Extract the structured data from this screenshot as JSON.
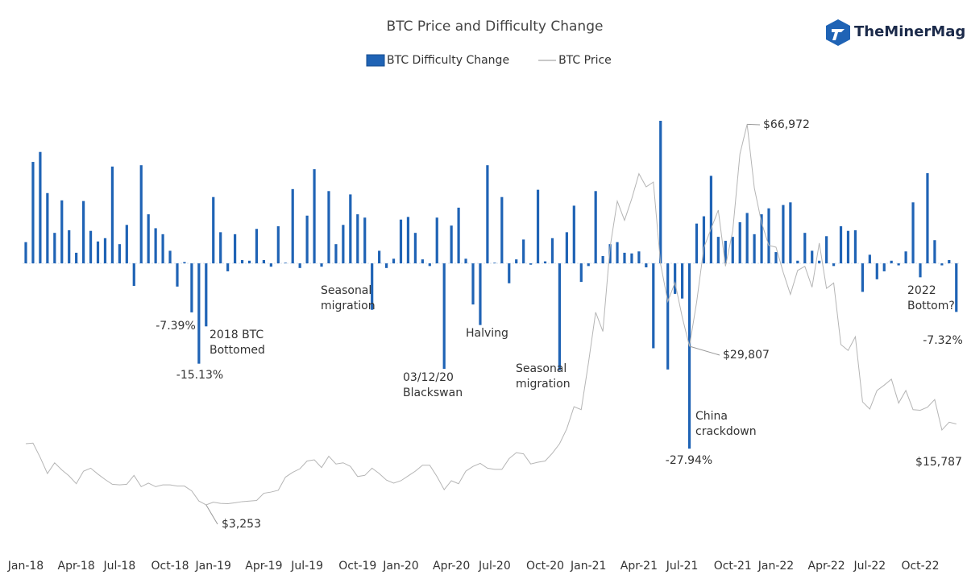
{
  "brand": "TheMinerMag",
  "chart_data": {
    "type": "bar",
    "title": "BTC Price and Difficulty Change",
    "categories": [
      "Jan-18",
      null,
      null,
      null,
      null,
      null,
      null,
      "Apr-18",
      null,
      null,
      null,
      null,
      null,
      "Jul-18",
      null,
      null,
      null,
      null,
      null,
      null,
      "Oct-18",
      null,
      null,
      null,
      null,
      null,
      "Jan-19",
      null,
      null,
      null,
      null,
      null,
      null,
      "Apr-19",
      null,
      null,
      null,
      null,
      null,
      "Jul-19",
      null,
      null,
      null,
      null,
      null,
      null,
      "Oct-19",
      null,
      null,
      null,
      null,
      null,
      "Jan-20",
      null,
      null,
      null,
      null,
      null,
      null,
      "Apr-20",
      null,
      null,
      null,
      null,
      null,
      "Jul-20",
      null,
      null,
      null,
      null,
      null,
      null,
      "Oct-20",
      null,
      null,
      null,
      null,
      null,
      "Jan-21",
      null,
      null,
      null,
      null,
      null,
      null,
      "Apr-21",
      null,
      null,
      null,
      null,
      null,
      "Jul-21",
      null,
      null,
      null,
      null,
      null,
      null,
      "Oct-21",
      null,
      null,
      null,
      null,
      null,
      "Jan-22",
      null,
      null,
      null,
      null,
      null,
      null,
      "Apr-22",
      null,
      null,
      null,
      null,
      null,
      "Jul-22",
      null,
      null,
      null,
      null,
      null,
      null,
      "Oct-22",
      null,
      null,
      null,
      null,
      null
    ],
    "series": [
      {
        "name": "BTC Difficulty Change",
        "type": "bar",
        "color": "#1f63b5",
        "values": [
          3.2,
          15.3,
          16.8,
          10.6,
          4.6,
          9.5,
          5.0,
          1.6,
          9.4,
          4.9,
          3.3,
          3.8,
          14.6,
          2.9,
          5.8,
          -3.4,
          14.8,
          7.4,
          5.3,
          4.4,
          1.9,
          -3.5,
          0.2,
          -7.39,
          -15.13,
          -9.5,
          10.0,
          4.7,
          -1.2,
          4.4,
          0.5,
          0.4,
          5.2,
          0.5,
          -0.5,
          5.6,
          0.1,
          11.2,
          -0.7,
          7.2,
          14.2,
          -0.5,
          10.9,
          2.9,
          5.8,
          10.4,
          7.4,
          6.9,
          -7.0,
          1.9,
          -0.7,
          0.7,
          6.6,
          7.0,
          4.6,
          0.6,
          -0.4,
          6.9,
          -15.9,
          5.7,
          8.4,
          0.7,
          -6.2,
          -9.3,
          14.8,
          0.1,
          10.0,
          -3.0,
          0.6,
          3.6,
          -0.2,
          11.1,
          0.3,
          3.8,
          -16.1,
          4.7,
          8.7,
          -2.8,
          -0.4,
          10.9,
          1.1,
          2.9,
          3.2,
          1.6,
          1.5,
          1.8,
          -0.6,
          -12.8,
          21.5,
          -16.0,
          -4.6,
          -5.3,
          -27.94,
          6.0,
          7.1,
          13.2,
          4.0,
          3.4,
          4.0,
          6.2,
          7.6,
          4.4,
          7.4,
          8.3,
          1.7,
          8.8,
          9.2,
          0.4,
          4.6,
          1.9,
          0.4,
          4.1,
          -0.4,
          5.6,
          4.9,
          5.0,
          -4.3,
          1.3,
          -2.4,
          -1.2,
          0.4,
          -0.3,
          1.8,
          9.2,
          -2.1,
          13.6,
          3.5,
          -0.3,
          0.5,
          -7.32
        ],
        "value_labels": [
          null,
          null,
          null,
          null,
          null,
          null,
          null,
          null,
          null,
          null,
          null,
          null,
          null,
          null,
          null,
          null,
          null,
          null,
          null,
          null,
          null,
          null,
          null,
          "-7.39%",
          "-15.13%",
          null,
          null,
          null,
          null,
          null,
          null,
          null,
          null,
          null,
          null,
          null,
          null,
          null,
          null,
          null,
          null,
          null,
          null,
          null,
          null,
          null,
          null,
          null,
          null,
          null,
          null,
          null,
          null,
          null,
          null,
          null,
          null,
          null,
          null,
          null,
          null,
          null,
          null,
          null,
          null,
          null,
          null,
          null,
          null,
          null,
          null,
          null,
          null,
          null,
          null,
          null,
          null,
          null,
          null,
          null,
          null,
          null,
          null,
          null,
          null,
          null,
          null,
          null,
          null,
          null,
          null,
          null,
          "-27.94%",
          null,
          null,
          null,
          null,
          null,
          null,
          null,
          null,
          null,
          null,
          null,
          null,
          null,
          null,
          null,
          null,
          null,
          null,
          null,
          null,
          null,
          null,
          null,
          null,
          null,
          null,
          null,
          null,
          null,
          null,
          null,
          null,
          null,
          null,
          null,
          null,
          "-7.32%"
        ]
      },
      {
        "name": "BTC Price",
        "type": "line",
        "color": "#b5b5b5",
        "axis": "y2",
        "values": [
          13500,
          13600,
          11200,
          8500,
          10300,
          9100,
          8100,
          6800,
          8900,
          9400,
          8400,
          7500,
          6700,
          6600,
          6700,
          8200,
          6300,
          6900,
          6300,
          6600,
          6600,
          6400,
          6400,
          5600,
          3900,
          3253,
          3700,
          3500,
          3450,
          3600,
          3800,
          3900,
          4000,
          5200,
          5400,
          5700,
          7900,
          8700,
          9300,
          10600,
          10800,
          9500,
          11400,
          10100,
          10300,
          9700,
          8000,
          8200,
          9400,
          8500,
          7400,
          6900,
          7300,
          8100,
          8900,
          9900,
          9900,
          8000,
          5800,
          7300,
          6800,
          8900,
          9700,
          10200,
          9400,
          9200,
          9200,
          11000,
          12000,
          11800,
          10100,
          10400,
          10600,
          11900,
          13500,
          16000,
          19700,
          19200,
          27000,
          35500,
          32300,
          46400,
          54100,
          50900,
          54500,
          58700,
          56500,
          57300,
          43600,
          37300,
          40500,
          34700,
          29807,
          37200,
          46300,
          49500,
          52600,
          43200,
          49100,
          62000,
          66972,
          56300,
          50500,
          46700,
          46400,
          42200,
          38500,
          42500,
          43200,
          39700,
          47100,
          39500,
          40400,
          30100,
          29100,
          31400,
          20500,
          19300,
          22400,
          23300,
          24300,
          20300,
          22400,
          19200,
          19100,
          19600,
          20900,
          15787,
          17100,
          16800
        ],
        "value_labels": [
          null,
          null,
          null,
          null,
          null,
          null,
          null,
          null,
          null,
          null,
          null,
          null,
          null,
          null,
          null,
          null,
          null,
          null,
          null,
          null,
          null,
          null,
          null,
          null,
          null,
          "$3,253",
          null,
          null,
          null,
          null,
          null,
          null,
          null,
          null,
          null,
          null,
          null,
          null,
          null,
          null,
          null,
          null,
          null,
          null,
          null,
          null,
          null,
          null,
          null,
          null,
          null,
          null,
          null,
          null,
          null,
          null,
          null,
          null,
          null,
          null,
          null,
          null,
          null,
          null,
          null,
          null,
          null,
          null,
          null,
          null,
          null,
          null,
          null,
          null,
          null,
          null,
          null,
          null,
          null,
          null,
          null,
          null,
          null,
          null,
          null,
          null,
          null,
          null,
          null,
          null,
          null,
          null,
          "$29,807",
          null,
          null,
          null,
          null,
          null,
          null,
          null,
          "$66,972",
          null,
          null,
          null,
          null,
          null,
          null,
          null,
          null,
          null,
          null,
          null,
          null,
          null,
          null,
          null,
          null,
          null,
          null,
          null,
          null,
          null,
          null,
          null,
          null,
          null,
          null,
          "$15,787",
          null,
          null
        ]
      }
    ],
    "ylim": [
      -38,
      30
    ],
    "y2lim": [
      1500,
      77000
    ],
    "annotations": [
      {
        "text": [
          "2018 BTC",
          "Bottomed"
        ]
      },
      {
        "text": [
          "Seasonal",
          "migration"
        ]
      },
      {
        "text": [
          "03/12/20",
          "Blackswan"
        ]
      },
      {
        "text": [
          "Halving"
        ]
      },
      {
        "text": [
          "Seasonal",
          "migration"
        ]
      },
      {
        "text": [
          "China",
          "crackdown"
        ]
      },
      {
        "text": [
          "2022",
          "Bottom?"
        ]
      }
    ]
  }
}
